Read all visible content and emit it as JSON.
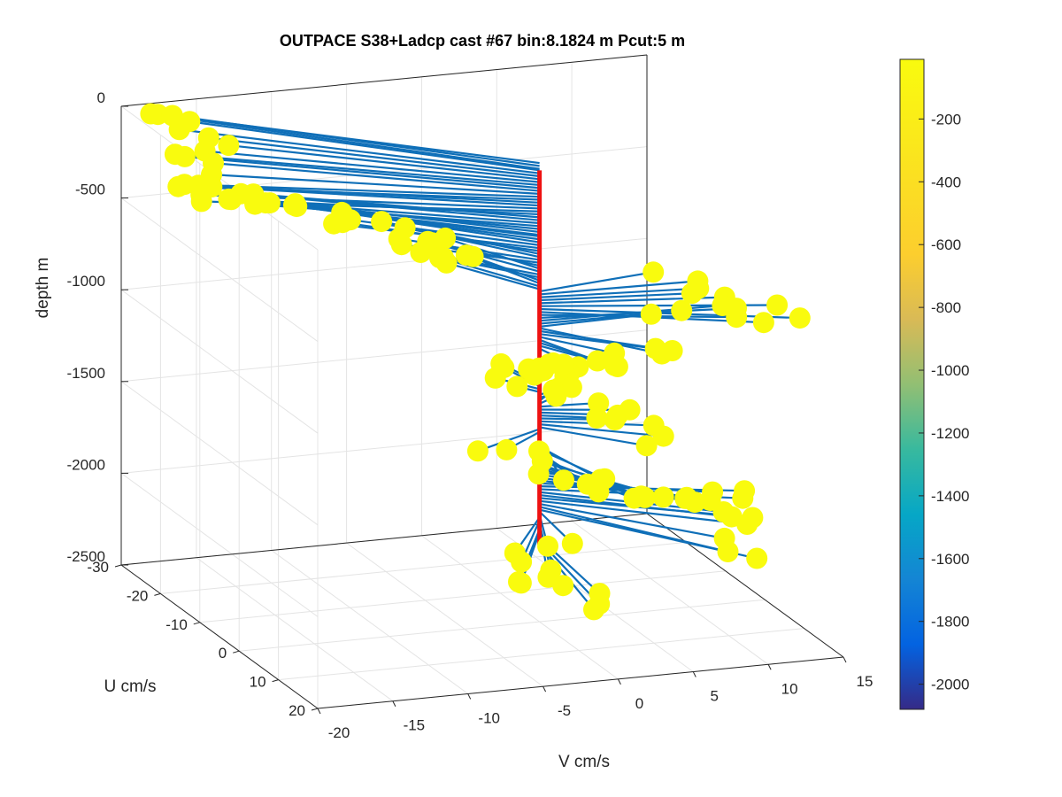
{
  "chart_data": {
    "type": "scatter",
    "title": "OUTPACE S38+Ladcp cast #67 bin:8.1824 m  Pcut:5 m",
    "xlabel": "V cm/s",
    "ylabel": "U cm/s",
    "zlabel": "depth m",
    "xlim": [
      -20,
      15
    ],
    "ylim": [
      -30,
      20
    ],
    "zlim": [
      -2500,
      0
    ],
    "x_ticks": [
      "-20",
      "-15",
      "-10",
      "-5",
      "0",
      "5",
      "10",
      "15"
    ],
    "y_ticks": [
      "-30",
      "-20",
      "-10",
      "0",
      "10",
      "20"
    ],
    "z_ticks": [
      "0",
      "-500",
      "-1000",
      "-1500",
      "-2000",
      "-2500"
    ],
    "grid": true,
    "colorbar": {
      "ticks": [
        "-200",
        "-400",
        "-600",
        "-800",
        "-1000",
        "-1200",
        "-1400",
        "-1600",
        "-1800",
        "-2000"
      ],
      "range": [
        -2080,
        -10
      ],
      "colormap": "parula"
    },
    "profile_color": "#ee1111",
    "stick_color": "#0f6fb8",
    "segments": [
      {
        "z": [
          0,
          40
        ],
        "v": [
          -18.5,
          -19.0,
          -18.6
        ],
        "u": [
          -28,
          -27,
          -28
        ]
      },
      {
        "z": [
          40,
          400
        ],
        "v": [
          -16.0,
          -19.5,
          -12.0
        ],
        "u": [
          -24,
          -14,
          -17
        ]
      },
      {
        "z": [
          400,
          700
        ],
        "v": [
          -12.0,
          -5.0,
          -2.0
        ],
        "u": [
          -17,
          -11,
          -10
        ]
      },
      {
        "z": [
          700,
          900
        ],
        "v": [
          8.0,
          14.0,
          8.5
        ],
        "u": [
          -3,
          10,
          -3
        ]
      },
      {
        "z": [
          900,
          1200
        ],
        "v": [
          6.0,
          -1.0,
          2.0
        ],
        "u": [
          10,
          6,
          -6
        ]
      },
      {
        "z": [
          1200,
          1450
        ],
        "v": [
          -2.0,
          3.5,
          6.0
        ],
        "u": [
          -6,
          0,
          8
        ]
      },
      {
        "z": [
          1450,
          1650
        ],
        "v": [
          -4.0,
          0.0,
          4.0
        ],
        "u": [
          4,
          12,
          14
        ]
      },
      {
        "z": [
          1650,
          1900
        ],
        "v": [
          4.0,
          11.0,
          8.0
        ],
        "u": [
          14,
          8,
          21
        ]
      },
      {
        "z": [
          1900,
          2080
        ],
        "v": [
          -2.0,
          -5.0,
          -0.5
        ],
        "u": [
          10,
          15,
          21
        ]
      }
    ]
  }
}
